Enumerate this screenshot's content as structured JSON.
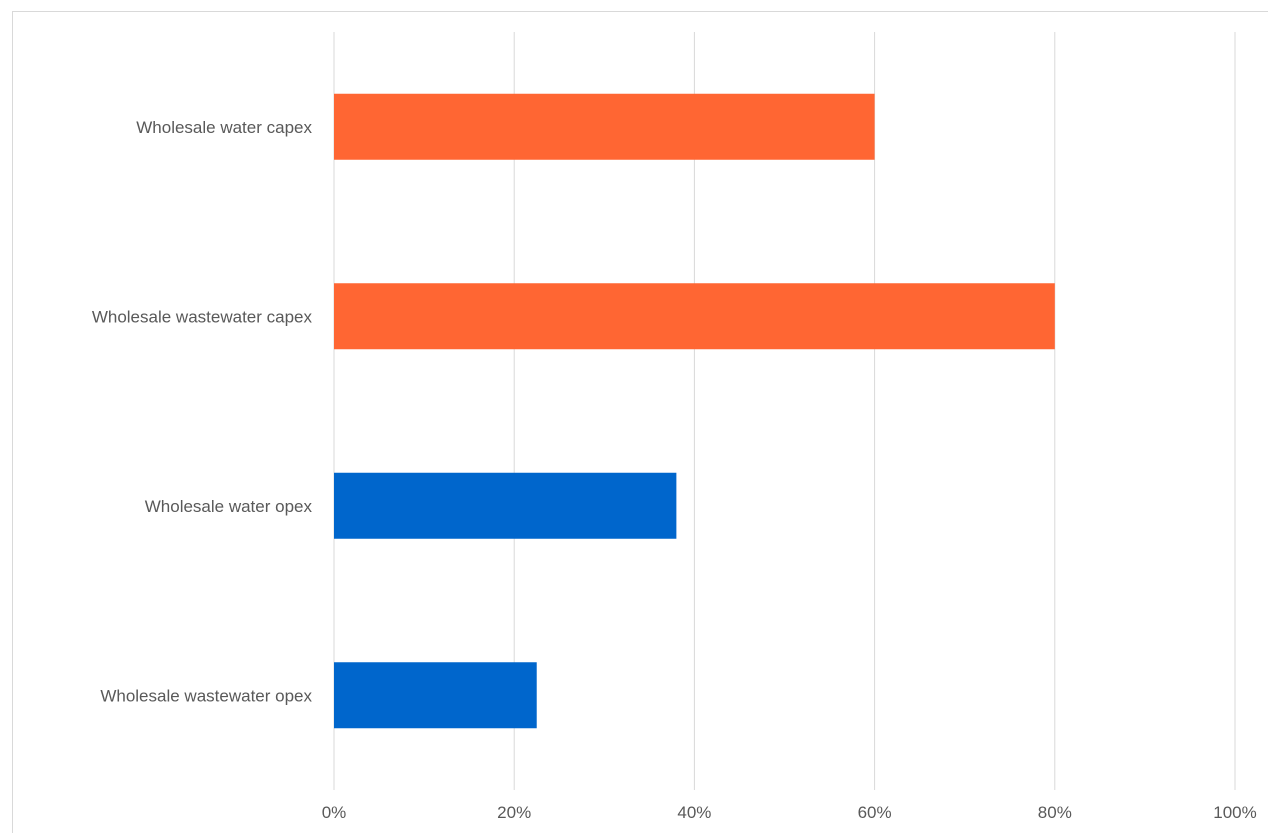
{
  "chart_data": {
    "type": "bar",
    "orientation": "horizontal",
    "title": "",
    "xlabel": "",
    "ylabel": "",
    "xlim": [
      0,
      100
    ],
    "x_ticks": [
      "0%",
      "20%",
      "40%",
      "60%",
      "80%",
      "100%"
    ],
    "x_tick_values": [
      0,
      20,
      40,
      60,
      80,
      100
    ],
    "grid": true,
    "legend": "none",
    "categories": [
      "Wholesale water capex",
      "Wholesale wastewater capex",
      "Wholesale water opex",
      "Wholesale wastewater opex"
    ],
    "values": [
      60,
      80,
      38,
      22.5
    ],
    "colors": [
      "#ff6633",
      "#ff6633",
      "#0066cc",
      "#0066cc"
    ]
  }
}
